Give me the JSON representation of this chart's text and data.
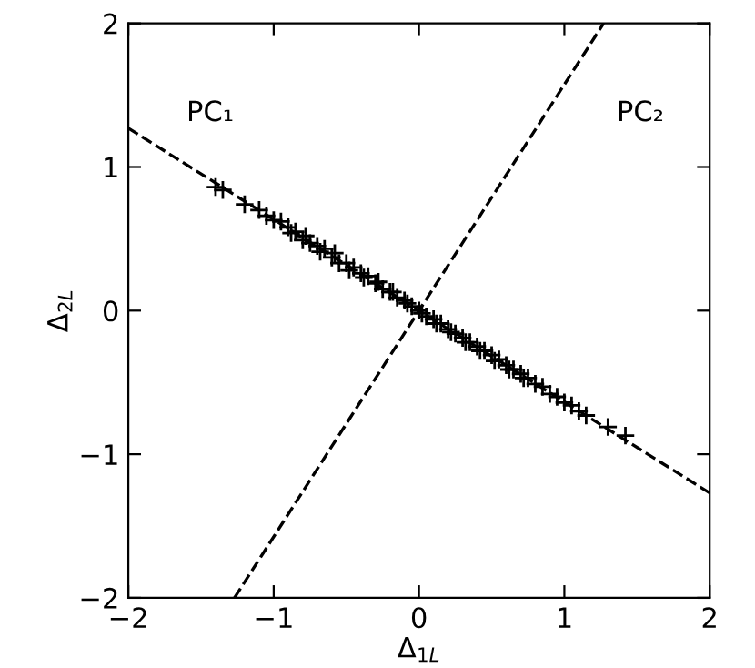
{
  "chart_data": {
    "type": "scatter",
    "xlabel": "Δ$_{1L}$",
    "ylabel": "Δ$_{2L}$",
    "xlim": [
      -2,
      2
    ],
    "ylim": [
      -2,
      2
    ],
    "xticks": [
      {
        "value": -2,
        "label": "−2"
      },
      {
        "value": -1,
        "label": "−1"
      },
      0,
      1,
      2
    ],
    "yticks": [
      {
        "value": -2,
        "label": "−2"
      },
      {
        "value": -1,
        "label": "−1"
      },
      0,
      1,
      2
    ],
    "grid": false,
    "marker": "cross",
    "series": [
      {
        "color": "#000000",
        "x": [
          -1.4,
          -1.35,
          -1.2,
          -1.1,
          -1.05,
          -1.0,
          -0.95,
          -0.9,
          -0.88,
          -0.85,
          -0.8,
          -0.78,
          -0.75,
          -0.7,
          -0.68,
          -0.65,
          -0.6,
          -0.58,
          -0.55,
          -0.5,
          -0.48,
          -0.45,
          -0.4,
          -0.38,
          -0.35,
          -0.3,
          -0.28,
          -0.25,
          -0.2,
          -0.18,
          -0.15,
          -0.1,
          -0.08,
          -0.05,
          0.0,
          0.02,
          0.05,
          0.1,
          0.12,
          0.15,
          0.2,
          0.22,
          0.25,
          0.3,
          0.32,
          0.35,
          0.4,
          0.42,
          0.45,
          0.5,
          0.52,
          0.55,
          0.6,
          0.62,
          0.65,
          0.7,
          0.72,
          0.75,
          0.8,
          0.85,
          0.9,
          0.95,
          1.0,
          1.05,
          1.1,
          1.15,
          1.3,
          1.42
        ],
        "values": [
          0.86,
          0.84,
          0.74,
          0.7,
          0.66,
          0.63,
          0.62,
          0.58,
          0.54,
          0.55,
          0.49,
          0.52,
          0.47,
          0.45,
          0.41,
          0.43,
          0.37,
          0.4,
          0.33,
          0.33,
          0.28,
          0.3,
          0.26,
          0.23,
          0.24,
          0.19,
          0.2,
          0.15,
          0.13,
          0.13,
          0.09,
          0.07,
          0.05,
          0.03,
          0.0,
          -0.02,
          -0.04,
          -0.06,
          -0.09,
          -0.09,
          -0.13,
          -0.15,
          -0.16,
          -0.19,
          -0.22,
          -0.22,
          -0.25,
          -0.28,
          -0.28,
          -0.31,
          -0.35,
          -0.34,
          -0.38,
          -0.41,
          -0.41,
          -0.44,
          -0.47,
          -0.47,
          -0.51,
          -0.53,
          -0.58,
          -0.6,
          -0.64,
          -0.66,
          -0.7,
          -0.73,
          -0.81,
          -0.87
        ]
      },
      {
        "type": "line",
        "name": "PC₁",
        "color": "#000000",
        "line_style": "dashed",
        "marker": "none",
        "x": [
          -2,
          2
        ],
        "values": [
          1.27,
          -1.27
        ]
      },
      {
        "type": "line",
        "name": "PC₂",
        "color": "#000000",
        "line_style": "dashed",
        "marker": "none",
        "x": [
          -1.27,
          1.27
        ],
        "values": [
          -2,
          2
        ]
      }
    ]
  }
}
